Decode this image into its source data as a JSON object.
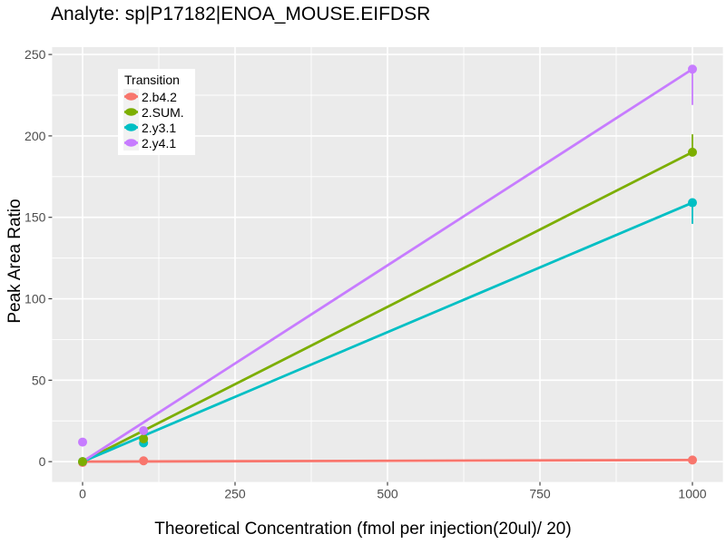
{
  "title": "Analyte: sp|P17182|ENOA_MOUSE.EIFDSR",
  "chart_data": {
    "type": "line",
    "title": "Analyte: sp|P17182|ENOA_MOUSE.EIFDSR",
    "xlabel": "Theoretical Concentration (fmol per injection(20ul)/ 20)",
    "ylabel": "Peak Area Ratio",
    "legend_title": "Transition",
    "legend_position": "inside-top-left",
    "grid": true,
    "panel_background": "#EBEBEB",
    "grid_color": "#FFFFFF",
    "axis_text_color": "#4D4D4D",
    "tick_mark_color": "#333333",
    "xlim": [
      -50,
      1050
    ],
    "ylim": [
      -12.5,
      254.5
    ],
    "x_ticks": {
      "major": [
        0,
        250,
        500,
        750,
        1000
      ],
      "minor": [
        125,
        375,
        625,
        875
      ]
    },
    "y_ticks": {
      "major": [
        0,
        50,
        100,
        150,
        200,
        250
      ],
      "minor": [
        25,
        75,
        125,
        175,
        225
      ]
    },
    "series": [
      {
        "name": "2.b4.2",
        "color": "#F8766D",
        "line": {
          "x": [
            0,
            1000
          ],
          "y": [
            0,
            1
          ]
        },
        "points": [
          {
            "x": 0,
            "y": -0.5
          },
          {
            "x": 100,
            "y": 0.5
          },
          {
            "x": 1000,
            "y": 1
          }
        ],
        "error_bars": []
      },
      {
        "name": "2.SUM.",
        "color": "#7CAE00",
        "line": {
          "x": [
            0,
            1000
          ],
          "y": [
            0,
            190
          ]
        },
        "points": [
          {
            "x": 0,
            "y": 0
          },
          {
            "x": 100,
            "y": 14
          },
          {
            "x": 1000,
            "y": 190
          }
        ],
        "error_bars": [
          {
            "x": 1000,
            "ymin": 190,
            "ymax": 201
          }
        ]
      },
      {
        "name": "2.y3.1",
        "color": "#00BFC4",
        "line": {
          "x": [
            0,
            1000
          ],
          "y": [
            0,
            159
          ]
        },
        "points": [
          {
            "x": 0,
            "y": 0
          },
          {
            "x": 100,
            "y": 11.5
          },
          {
            "x": 1000,
            "y": 159
          }
        ],
        "error_bars": [
          {
            "x": 1000,
            "ymin": 146,
            "ymax": 159
          }
        ]
      },
      {
        "name": "2.y4.1",
        "color": "#C77CFF",
        "line": {
          "x": [
            0,
            1000
          ],
          "y": [
            0,
            241
          ]
        },
        "points": [
          {
            "x": 0,
            "y": 12
          },
          {
            "x": 100,
            "y": 19
          },
          {
            "x": 1000,
            "y": 241
          }
        ],
        "error_bars": [
          {
            "x": 1000,
            "ymin": 219,
            "ymax": 241
          }
        ]
      }
    ]
  }
}
